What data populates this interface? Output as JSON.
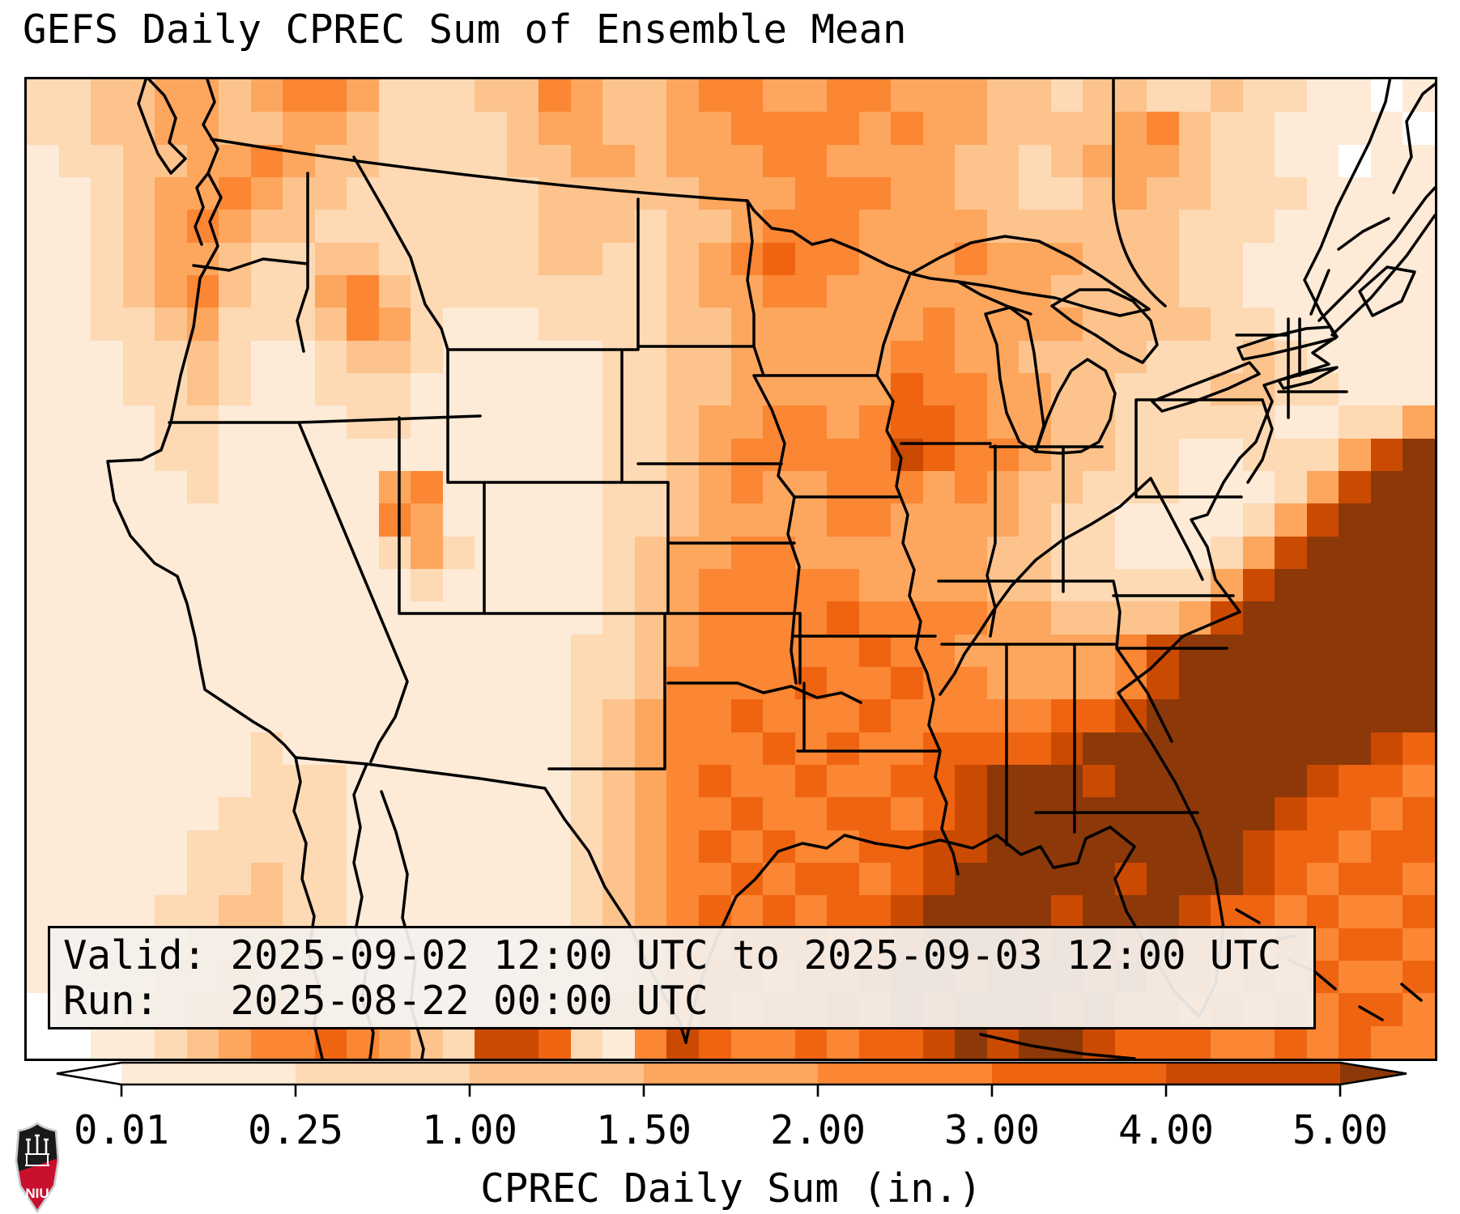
{
  "title": "GEFS Daily CPREC Sum of Ensemble Mean",
  "info_box": {
    "valid_line": "Valid: 2025-09-02 12:00 UTC to 2025-09-03 12:00 UTC",
    "run_line": "Run:   2025-08-22 00:00 UTC"
  },
  "colorbar": {
    "label": "CPREC Daily Sum (in.)",
    "tick_labels": [
      "0.01",
      "0.25",
      "1.00",
      "1.50",
      "2.00",
      "3.00",
      "4.00",
      "5.00"
    ],
    "boundaries": [
      0.01,
      0.25,
      1.0,
      1.5,
      2.0,
      3.0,
      4.0,
      5.0
    ],
    "extend": "both",
    "under_color": "#ffffff",
    "over_color": "#8c3808",
    "bin_fill_colors": [
      "#fdead7",
      "#fdd9b4",
      "#fdc38d",
      "#fda65d",
      "#fb8633",
      "#ef6410",
      "#cb4a02"
    ],
    "outline_color": "#000000"
  },
  "logo": {
    "text": "NIU",
    "red": "#c8102e",
    "black": "#1a1a1c",
    "border": "#c9cbce"
  },
  "chart_data": {
    "type": "heatmap",
    "title": "GEFS Daily CPREC Sum of Ensemble Mean",
    "region": "Contiguous United States (Lambert-style projection)",
    "colorbar_label": "CPREC Daily Sum (in.)",
    "colorbar_ticks": [
      0.01,
      0.25,
      1.0,
      1.5,
      2.0,
      3.0,
      4.0,
      5.0
    ],
    "colorbar_extend": "both",
    "units": "inches",
    "valid": "2025-09-02 12:00 UTC to 2025-09-03 12:00 UTC",
    "run": "2025-08-22 00:00 UTC",
    "legend_position": "bottom",
    "grid_cols": 44,
    "grid_rows_count": 30,
    "bin_colors": [
      "#ffffff",
      "#fdead7",
      "#fdd9b4",
      "#fdc38d",
      "#fda65d",
      "#fb8633",
      "#ef6410",
      "#cb4a02",
      "#8c3808"
    ],
    "bin_meaning": "digit 0 = < 0.01 in; 1: 0.01-0.25; 2: 0.25-1.00; 3: 1.00-1.50; 4: 1.50-2.00; 5: 2.00-3.00; 6: 3.00-4.00; 7: 4.00-5.00; 8 = > 5.00 in",
    "grid_rows": [
      "22334434554222335433455445544433233223221101",
      "22334433443222234433445555454433334532211110",
      "12233445433222233443444554444332344432211011",
      "11234454332222223333344455544332234332221111",
      "11234543322222223332334555444433333322211111",
      "11234432233222223322345655444544433322111111",
      "11234532245322222222344554444444333322111111",
      "11223422235421112222334444445444433332211111",
      "11122321123321111122334444455443333222321111",
      "11122321122211111122334444465544332223322111",
      "11112211112211111122344554566544332222211224",
      "11112211111111111122345555576554332211222478",
      "11111211111451111122345445554543322211124788",
      "11111111111541111122344445544443221111247888",
      "11111111111242111123445544444433221112478888",
      "11111111111121111123455555444433222224788888",
      "11111111111111111123455556555544333347888888",
      "11111111111111111223455555655444445788888888",
      "11111111111111111223555565565544445788888888",
      "11111111111111111234556555655555667888888888",
      "11111112111111111234555656556666788888888876",
      "11111112221111111234565565566788878888887665",
      "11111122221111111234556556656788888888876656",
      "11111222221111111234565655667788888888766566",
      "11111223221111111234556566567888887888765665",
      "11112233221111111234565656678888788876656556",
      "11122333321111112234556665678887887866565665",
      "11223343321111112234566566788788878665656556",
      "01233444322111122344565667687888786656565665",
      "00112345565432776215765565667878876665565655"
    ]
  }
}
